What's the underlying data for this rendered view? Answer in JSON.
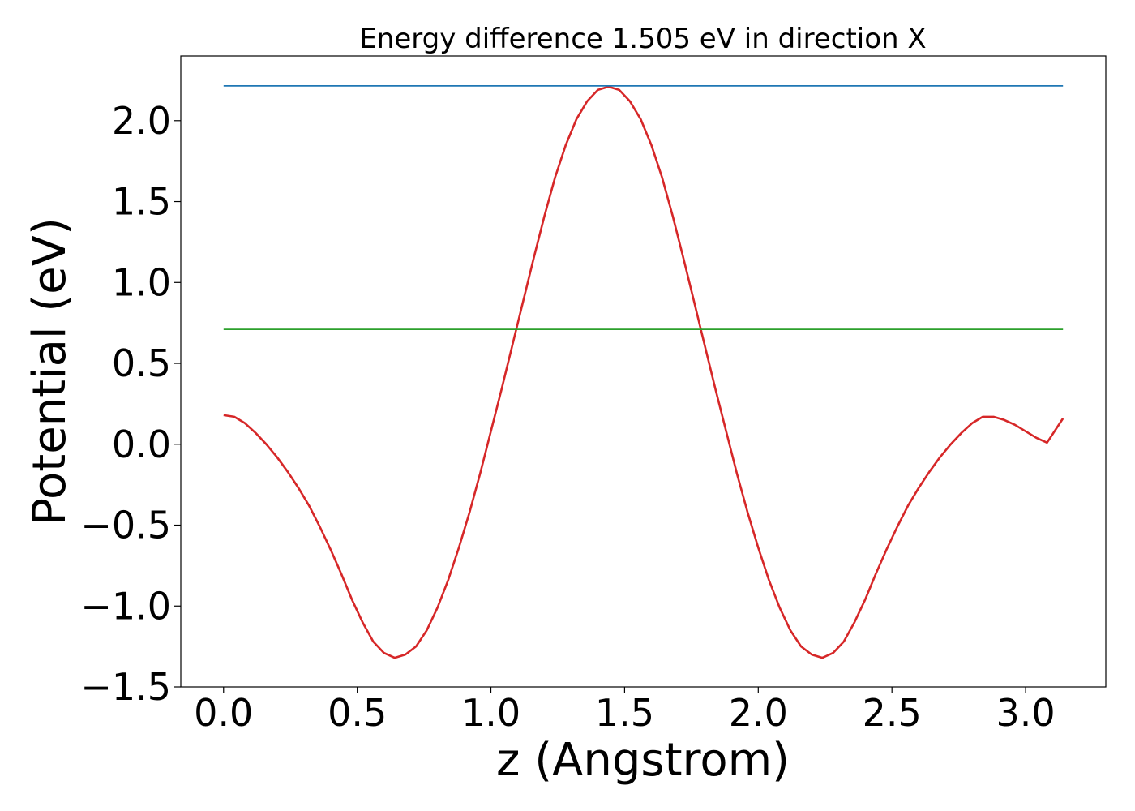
{
  "chart_data": {
    "type": "line",
    "title": "Energy difference 1.505 eV in direction X",
    "xlabel": "z (Angstrom)",
    "ylabel": "Potential (eV)",
    "xlim": [
      -0.16,
      3.3
    ],
    "ylim": [
      -1.5,
      2.4
    ],
    "xticks": [
      0.0,
      0.5,
      1.0,
      1.5,
      2.0,
      2.5,
      3.0
    ],
    "xtick_labels": [
      "0.0",
      "0.5",
      "1.0",
      "1.5",
      "2.0",
      "2.5",
      "3.0"
    ],
    "yticks": [
      -1.5,
      -1.0,
      -0.5,
      0.0,
      0.5,
      1.0,
      1.5,
      2.0
    ],
    "ytick_labels": [
      "−1.5",
      "−1.0",
      "−0.5",
      "0.0",
      "0.5",
      "1.0",
      "1.5",
      "2.0"
    ],
    "grid": false,
    "series": [
      {
        "color": "#d62728",
        "x": [
          0.0,
          0.04,
          0.08,
          0.12,
          0.16,
          0.2,
          0.24,
          0.28,
          0.32,
          0.36,
          0.4,
          0.44,
          0.48,
          0.52,
          0.56,
          0.6,
          0.64,
          0.68,
          0.72,
          0.76,
          0.8,
          0.84,
          0.88,
          0.92,
          0.96,
          1.0,
          1.04,
          1.08,
          1.12,
          1.16,
          1.2,
          1.24,
          1.28,
          1.32,
          1.36,
          1.4,
          1.44,
          1.48,
          1.52,
          1.56,
          1.6,
          1.64,
          1.68,
          1.72,
          1.76,
          1.8,
          1.84,
          1.88,
          1.92,
          1.96,
          2.0,
          2.04,
          2.08,
          2.12,
          2.16,
          2.2,
          2.24,
          2.28,
          2.32,
          2.36,
          2.4,
          2.44,
          2.48,
          2.52,
          2.56,
          2.6,
          2.64,
          2.68,
          2.72,
          2.76,
          2.8,
          2.84,
          2.88,
          2.92,
          2.96,
          3.0,
          3.04,
          3.08,
          3.14
        ],
        "y": [
          0.18,
          0.17,
          0.13,
          0.07,
          0.0,
          -0.08,
          -0.17,
          -0.27,
          -0.38,
          -0.51,
          -0.65,
          -0.8,
          -0.96,
          -1.1,
          -1.22,
          -1.29,
          -1.32,
          -1.3,
          -1.25,
          -1.15,
          -1.01,
          -0.84,
          -0.64,
          -0.42,
          -0.18,
          0.08,
          0.34,
          0.61,
          0.88,
          1.15,
          1.41,
          1.65,
          1.85,
          2.01,
          2.12,
          2.19,
          2.21,
          2.19,
          2.12,
          2.01,
          1.85,
          1.65,
          1.41,
          1.15,
          0.88,
          0.61,
          0.34,
          0.08,
          -0.18,
          -0.42,
          -0.64,
          -0.84,
          -1.01,
          -1.15,
          -1.25,
          -1.3,
          -1.32,
          -1.29,
          -1.22,
          -1.1,
          -0.96,
          -0.8,
          -0.65,
          -0.51,
          -0.38,
          -0.27,
          -0.17,
          -0.08,
          0.0,
          0.07,
          0.13,
          0.17,
          0.17,
          0.15,
          0.12,
          0.08,
          0.04,
          0.01,
          0.16
        ]
      },
      {
        "color": "#1f77b4",
        "x": [
          0.0,
          3.14
        ],
        "y": [
          2.215,
          2.215
        ]
      },
      {
        "color": "#2ca02c",
        "x": [
          0.0,
          3.14
        ],
        "y": [
          0.71,
          0.71
        ]
      }
    ]
  }
}
